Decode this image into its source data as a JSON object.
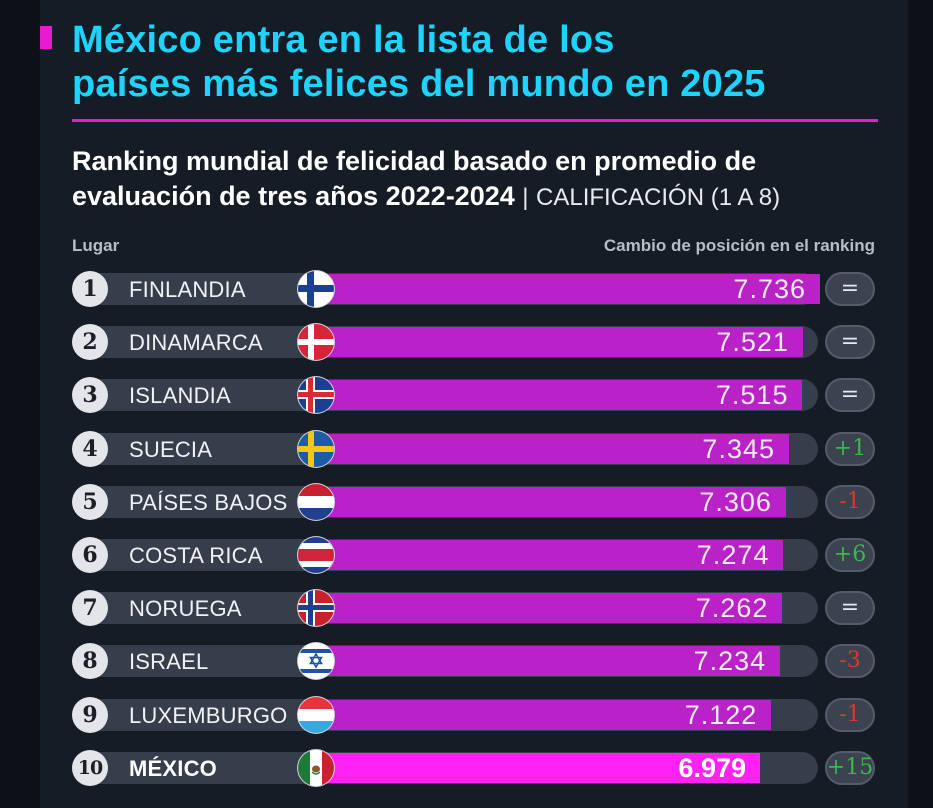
{
  "header": {
    "title_line1": "México entra en la lista de los",
    "title_line2": "países más felices del mundo en 2025",
    "subtitle_line1": "Ranking mundial de felicidad basado en promedio de",
    "subtitle_line2": "evaluación de tres años 2022-2024",
    "subtitle_separator": "|",
    "subtitle_scale": "CALIFICACIÓN (1 A 8)",
    "col_left": "Lugar",
    "col_right": "Cambio de posición en el ranking"
  },
  "colors": {
    "title": "#1fd3ff",
    "accent": "#e91ad0",
    "bar": "#b822c6",
    "bar_highlight": "#ff22f2",
    "up": "#3bb84a",
    "down": "#d93a2c"
  },
  "chart_data": {
    "type": "bar",
    "orientation": "horizontal",
    "title": "México entra en la lista de los países más felices del mundo en 2025",
    "subtitle": "Ranking mundial de felicidad basado en promedio de evaluación de tres años 2022-2024 | CALIFICACIÓN (1 A 8)",
    "xlabel": "",
    "ylabel": "Lugar",
    "value_scale_note": "CALIFICACIÓN (1 A 8)",
    "categories": [
      "FINLANDIA",
      "DINAMARCA",
      "ISLANDIA",
      "SUECIA",
      "PAÍSES BAJOS",
      "COSTA RICA",
      "NORUEGA",
      "ISRAEL",
      "LUXEMBURGO",
      "MÉXICO"
    ],
    "rows": [
      {
        "rank": "1",
        "country": "FINLANDIA",
        "value": 7.736,
        "value_label": "7.736",
        "change": "=",
        "change_dir": "same",
        "flag": "finland-flag-icon"
      },
      {
        "rank": "2",
        "country": "DINAMARCA",
        "value": 7.521,
        "value_label": "7.521",
        "change": "=",
        "change_dir": "same",
        "flag": "denmark-flag-icon"
      },
      {
        "rank": "3",
        "country": "ISLANDIA",
        "value": 7.515,
        "value_label": "7.515",
        "change": "=",
        "change_dir": "same",
        "flag": "iceland-flag-icon"
      },
      {
        "rank": "4",
        "country": "SUECIA",
        "value": 7.345,
        "value_label": "7.345",
        "change": "+1",
        "change_dir": "up",
        "flag": "sweden-flag-icon"
      },
      {
        "rank": "5",
        "country": "PAÍSES BAJOS",
        "value": 7.306,
        "value_label": "7.306",
        "change": "-1",
        "change_dir": "down",
        "flag": "netherlands-flag-icon"
      },
      {
        "rank": "6",
        "country": "COSTA RICA",
        "value": 7.274,
        "value_label": "7.274",
        "change": "+6",
        "change_dir": "up",
        "flag": "costa-rica-flag-icon"
      },
      {
        "rank": "7",
        "country": "NORUEGA",
        "value": 7.262,
        "value_label": "7.262",
        "change": "=",
        "change_dir": "same",
        "flag": "norway-flag-icon"
      },
      {
        "rank": "8",
        "country": "ISRAEL",
        "value": 7.234,
        "value_label": "7.234",
        "change": "-3",
        "change_dir": "down",
        "flag": "israel-flag-icon"
      },
      {
        "rank": "9",
        "country": "LUXEMBURGO",
        "value": 7.122,
        "value_label": "7.122",
        "change": "-1",
        "change_dir": "down",
        "flag": "luxembourg-flag-icon"
      },
      {
        "rank": "10",
        "country": "MÉXICO",
        "value": 6.979,
        "value_label": "6.979",
        "change": "+15",
        "change_dir": "up",
        "flag": "mexico-flag-icon",
        "highlight": true
      }
    ]
  }
}
